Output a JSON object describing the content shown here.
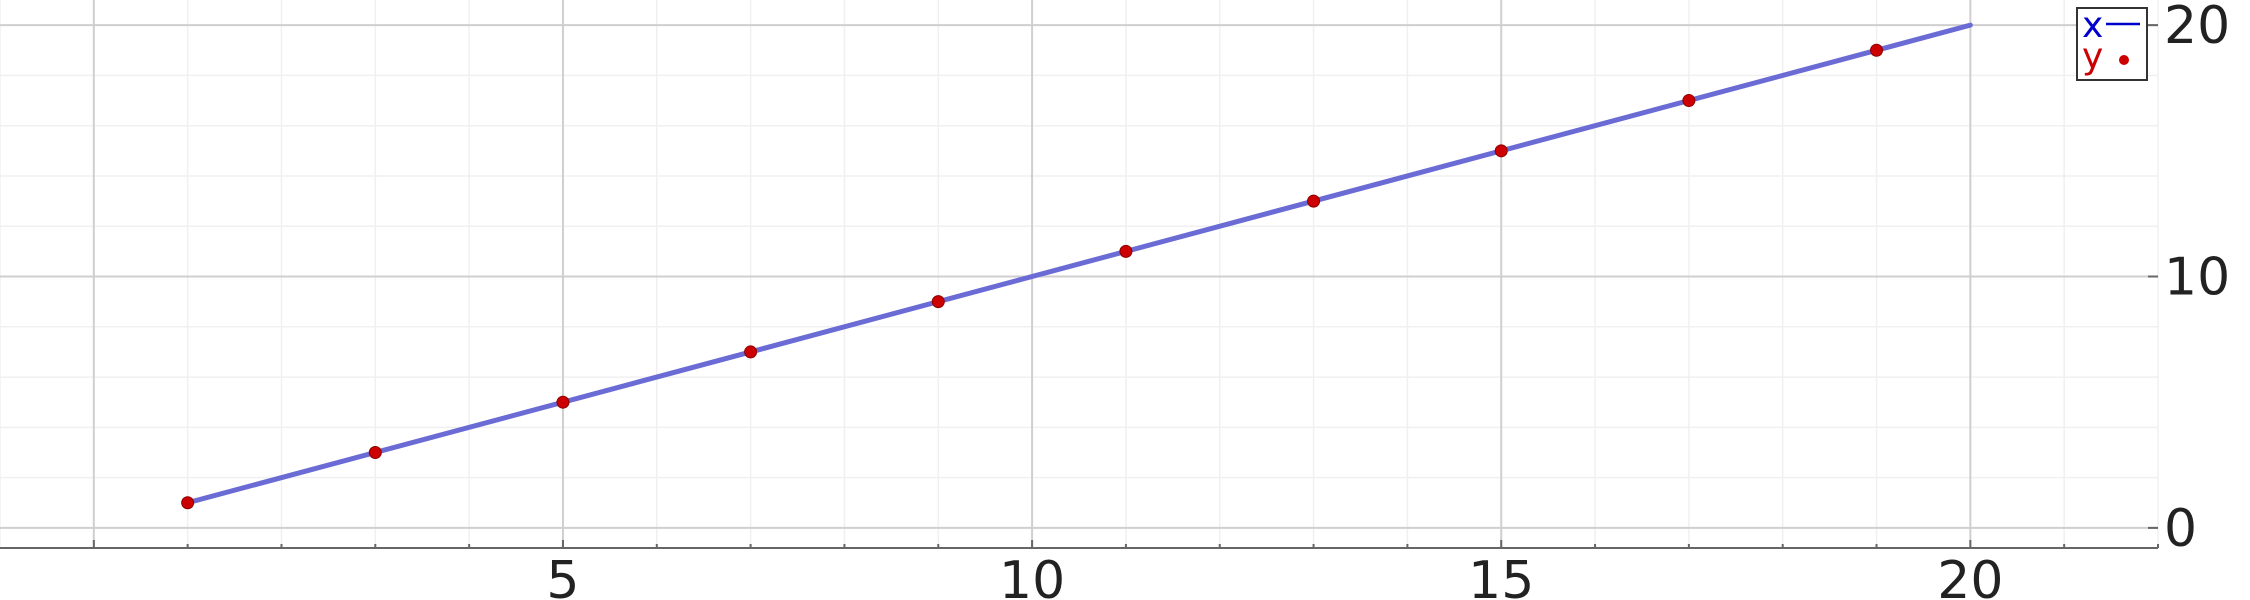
{
  "chart_data": {
    "type": "line",
    "title": "",
    "xlabel": "",
    "ylabel": "",
    "xlim": [
      -1,
      22
    ],
    "ylim": [
      -0.8,
      21
    ],
    "x_ticks": [
      5,
      10,
      15,
      20
    ],
    "y_ticks": [
      0,
      10,
      20
    ],
    "grid": true,
    "y_axis_position": "right",
    "legend_position": "top-right",
    "series": [
      {
        "name": "x",
        "kind": "line",
        "color": "#6b6bd6",
        "legend_color": "#0000cc",
        "x": [
          1,
          20
        ],
        "y": [
          1,
          20
        ]
      },
      {
        "name": "y",
        "kind": "scatter",
        "color": "#cc0000",
        "legend_color": "#cc0000",
        "x": [
          1,
          3,
          5,
          7,
          9,
          11,
          13,
          15,
          17,
          19
        ],
        "y": [
          1,
          3,
          5,
          7,
          9,
          11,
          13,
          15,
          17,
          19
        ]
      }
    ]
  }
}
